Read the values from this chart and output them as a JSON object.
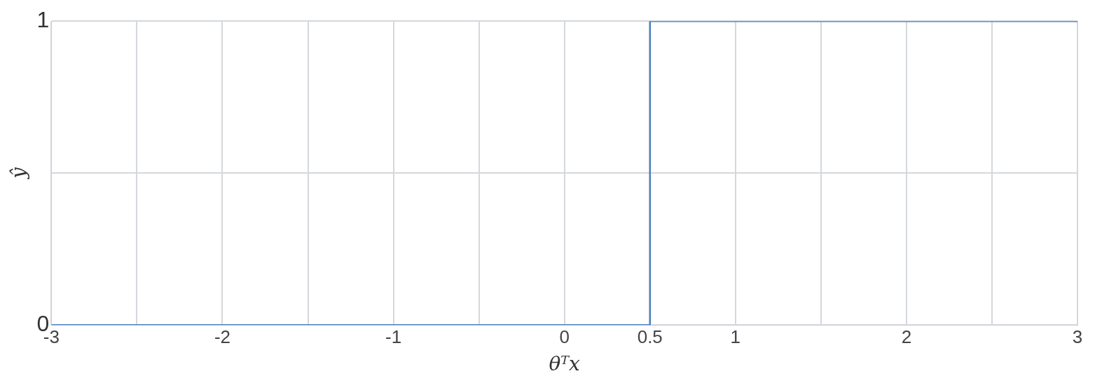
{
  "chart_data": {
    "type": "line",
    "xlabel": "θᵀx",
    "ylabel": "ŷ",
    "x": [
      -3,
      0.5,
      0.5,
      3
    ],
    "series": [
      {
        "color": "#4a7ebf",
        "values": [
          0,
          0,
          1,
          1
        ]
      }
    ],
    "xlim": [
      -3,
      3
    ],
    "ylim": [
      0,
      1
    ],
    "xticks": [
      -3,
      {
        "value": -2.5,
        "label": null
      },
      -2,
      {
        "value": -1.5,
        "label": null
      },
      -1,
      {
        "value": -0.5,
        "label": null
      },
      0,
      0.5,
      1,
      {
        "value": 1.5,
        "label": null
      },
      2,
      {
        "value": 2.5,
        "label": null
      },
      3
    ],
    "yticks": [
      0,
      {
        "value": 0.5,
        "label": null
      },
      1
    ],
    "grid": true,
    "legend": false,
    "marker": "none",
    "line_style": "solid"
  }
}
